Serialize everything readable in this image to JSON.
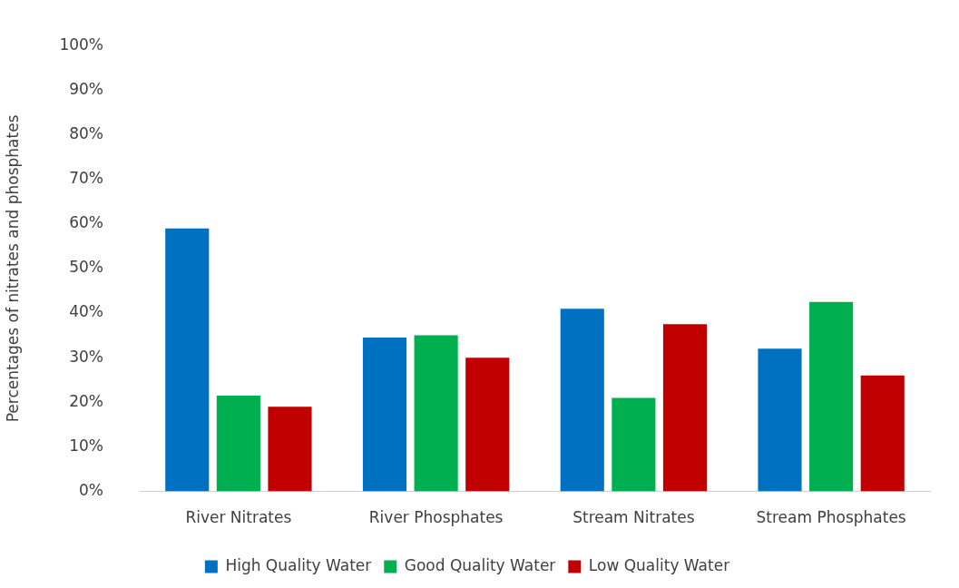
{
  "chart_data": {
    "type": "bar",
    "ylabel": "Percentages of nitrates and phosphates",
    "categories": [
      "River Nitrates",
      "River Phosphates",
      "Stream Nitrates",
      "Stream Phosphates"
    ],
    "series": [
      {
        "name": "High Quality Water",
        "color": "#0070c0",
        "values": [
          59,
          34.5,
          41,
          32
        ]
      },
      {
        "name": "Good Quality Water",
        "color": "#00b050",
        "values": [
          21.5,
          35,
          21,
          42.5
        ]
      },
      {
        "name": "Low Quality Water",
        "color": "#c00000",
        "values": [
          19,
          30,
          37.5,
          26
        ]
      }
    ],
    "ylim": [
      0,
      100
    ],
    "yticks": [
      {
        "value": 0,
        "label": "0%"
      },
      {
        "value": 10,
        "label": "10%"
      },
      {
        "value": 20,
        "label": "20%"
      },
      {
        "value": 30,
        "label": "30%"
      },
      {
        "value": 40,
        "label": "40%"
      },
      {
        "value": 50,
        "label": "50%"
      },
      {
        "value": 60,
        "label": "60%"
      },
      {
        "value": 70,
        "label": "70%"
      },
      {
        "value": 80,
        "label": "80%"
      },
      {
        "value": 90,
        "label": "90%"
      },
      {
        "value": 100,
        "label": "100%"
      }
    ],
    "grid": false,
    "legend": "bottom"
  }
}
